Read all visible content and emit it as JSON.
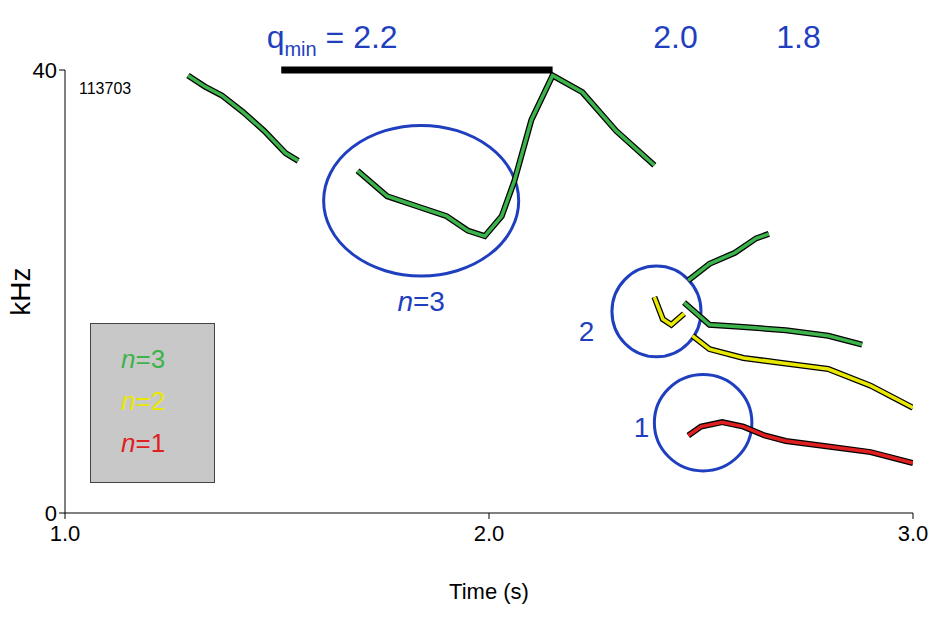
{
  "chart_data": {
    "type": "line",
    "x_label": "Time (s)",
    "y_label": "kHz",
    "xlim": [
      1,
      3
    ],
    "xticks": [
      {
        "value": 1,
        "label": "1.0"
      },
      {
        "value": 2,
        "label": "2.0"
      },
      {
        "value": 3,
        "label": "3.0"
      }
    ],
    "ylim": [
      0,
      40
    ],
    "yticks": [
      0,
      40
    ],
    "grid": false,
    "legend": "lower left",
    "shot": "113703",
    "q_min": {
      "label": "q",
      "subscript": "min",
      "separator": " = ",
      "x": [
        1.63,
        2.44,
        2.73
      ],
      "values": [
        2.2,
        2.0,
        1.8
      ],
      "value_labels": [
        "2.2",
        "2.0",
        "1.8"
      ],
      "range": [
        1.51,
        2.15
      ]
    },
    "series": [
      {
        "name": "n=3",
        "color": "#3cb44b",
        "x": [
          1.29,
          1.33,
          1.37,
          1.42,
          1.47,
          1.52,
          1.55,
          1.6,
          1.69,
          1.76,
          1.83,
          1.9,
          1.95,
          1.99,
          2.03,
          2.06,
          2.1,
          2.15,
          2.22,
          2.3,
          2.39,
          2.42,
          2.47,
          2.52,
          2.58,
          2.63,
          2.66,
          2.7,
          2.46,
          2.52,
          2.6,
          2.7,
          2.8,
          2.88
        ],
        "values": [
          39.5,
          38.5,
          37.7,
          36.2,
          34.5,
          32.5,
          31.8,
          null,
          30.9,
          28.6,
          27.7,
          26.8,
          25.5,
          25.0,
          26.8,
          30.0,
          35.5,
          39.5,
          38.0,
          34.5,
          31.4,
          null,
          21.0,
          22.5,
          23.5,
          24.8,
          25.2,
          null,
          19.0,
          17.0,
          16.8,
          16.5,
          16.0,
          15.2
        ]
      },
      {
        "name": "n=2",
        "color": "#e8e800",
        "x": [
          2.39,
          2.41,
          2.43,
          2.46,
          2.47,
          2.48,
          2.52,
          2.6,
          2.7,
          2.8,
          2.9,
          3.0
        ],
        "values": [
          19.5,
          17.5,
          17.0,
          18.0,
          null,
          16.0,
          14.8,
          14.0,
          13.5,
          13.0,
          11.5,
          9.5
        ]
      },
      {
        "name": "n=1",
        "color": "#e02020",
        "x": [
          2.47,
          2.5,
          2.55,
          2.6,
          2.65,
          2.7,
          2.8,
          2.9,
          3.0
        ],
        "values": [
          7.0,
          7.8,
          8.2,
          7.8,
          7.0,
          6.5,
          6.0,
          5.5,
          4.5
        ]
      }
    ],
    "regions": [
      {
        "label": "n=3",
        "x": [
          1.61,
          2.07
        ],
        "y": [
          21.4,
          35.0
        ],
        "label_x": 1.84,
        "label_y": 19.1
      },
      {
        "label": "2",
        "x": [
          2.29,
          2.5
        ],
        "y": [
          14.1,
          22.3
        ],
        "label_x": 2.23,
        "label_y": 16.4
      },
      {
        "label": "1",
        "x": [
          2.39,
          2.62
        ],
        "y": [
          3.8,
          12.5
        ],
        "label_x": 2.36,
        "label_y": 7.7
      }
    ]
  }
}
